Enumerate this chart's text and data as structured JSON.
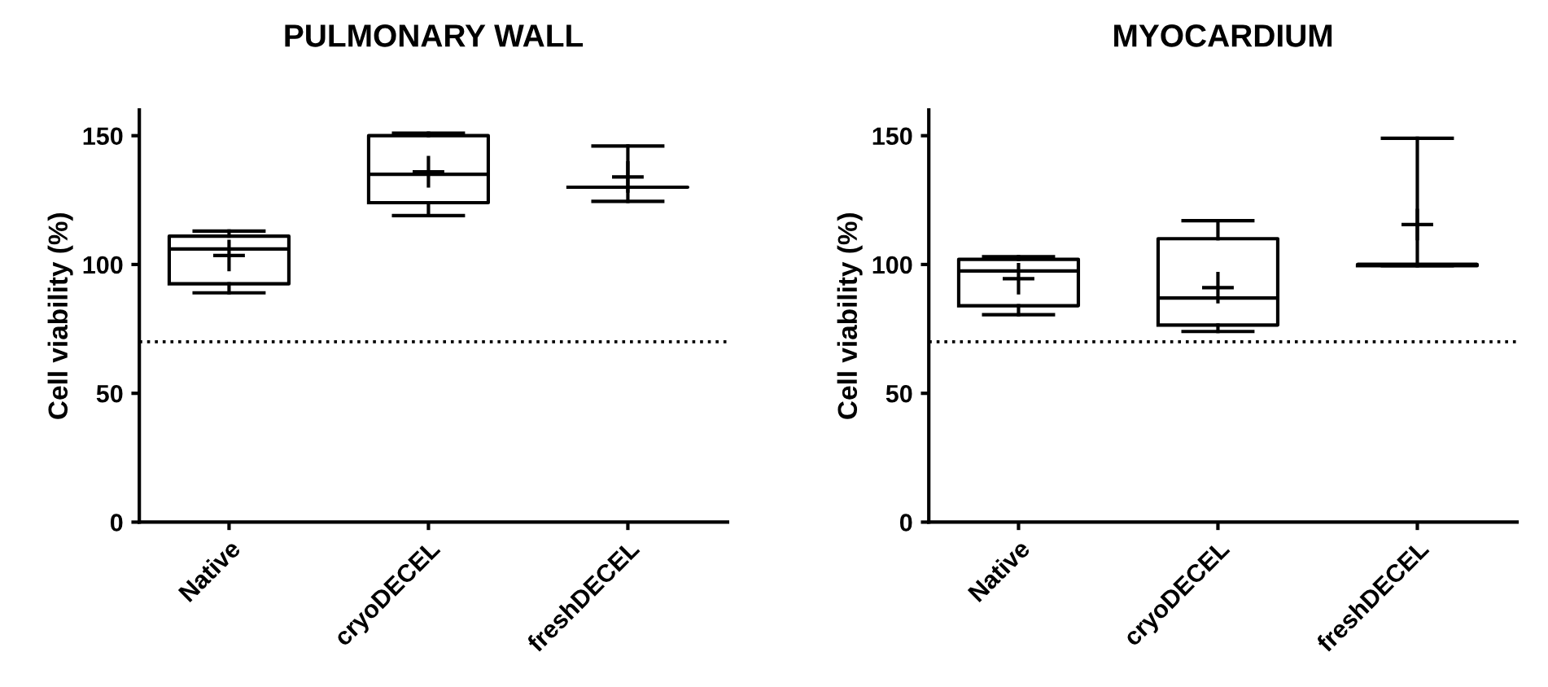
{
  "chart_data": [
    {
      "type": "box",
      "title": "PULMONARY WALL",
      "ylabel": "Cell viability (%)",
      "categories": [
        "Native",
        "cryoDECEL",
        "freshDECEL"
      ],
      "ylim": [
        0,
        160
      ],
      "yticks": [
        0,
        50,
        100,
        150
      ],
      "grid": false,
      "legend": false,
      "boxes": [
        {
          "low": 89,
          "q1": 92.5,
          "median": 106,
          "q3": 111,
          "high": 113,
          "mean": 103.5
        },
        {
          "low": 119,
          "q1": 124,
          "median": 135,
          "q3": 150,
          "high": 151,
          "mean": 136
        },
        {
          "low": 124.5,
          "q1": 130,
          "median": 130,
          "q3": 130,
          "high": 146,
          "mean": 134
        }
      ],
      "ref_lines": [
        {
          "axis": "y",
          "value": 70,
          "line_style": "dotted",
          "color": "#000000"
        }
      ]
    },
    {
      "type": "box",
      "title": "MYOCARDIUM",
      "ylabel": "Cell viability (%)",
      "categories": [
        "Native",
        "cryoDECEL",
        "freshDECEL"
      ],
      "ylim": [
        0,
        160
      ],
      "yticks": [
        0,
        50,
        100,
        150
      ],
      "grid": false,
      "legend": false,
      "boxes": [
        {
          "low": 80.5,
          "q1": 84,
          "median": 97.5,
          "q3": 102,
          "high": 103,
          "mean": 94.5
        },
        {
          "low": 74,
          "q1": 76.5,
          "median": 87,
          "q3": 110,
          "high": 117,
          "mean": 91
        },
        {
          "low": 99.5,
          "q1": 99.5,
          "median": 100,
          "q3": 100,
          "high": 149,
          "mean": 115.5
        }
      ],
      "ref_lines": [
        {
          "axis": "y",
          "value": 70,
          "line_style": "dotted",
          "color": "#000000"
        }
      ]
    }
  ]
}
